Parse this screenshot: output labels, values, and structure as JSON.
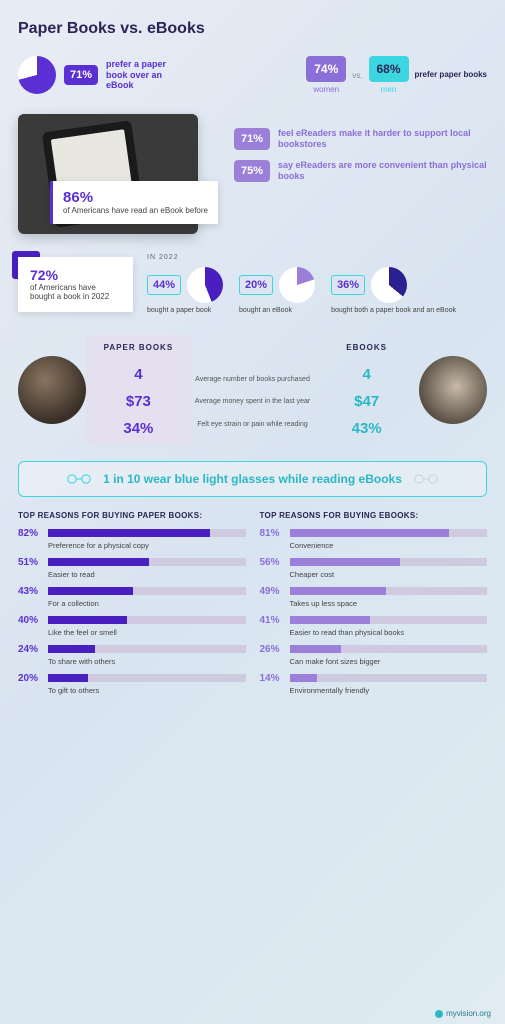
{
  "title": "Paper Books vs. eBooks",
  "top": {
    "prefer_pct": "71%",
    "prefer_text": "prefer a paper book over an eBook",
    "pie": {
      "value": 71,
      "fill": "#5a2fd4",
      "bg": "#ffffff"
    },
    "women": {
      "pct": "74%",
      "label": "women",
      "color": "#8b6fd9"
    },
    "men": {
      "pct": "68%",
      "label": "men",
      "color": "#3cd6e0"
    },
    "vs": "vs.",
    "gender_text": "prefer paper books"
  },
  "ereader": {
    "callout_pct": "86%",
    "callout_text": "of Americans have read an eBook before",
    "stat1_pct": "71%",
    "stat1_text": "feel eReaders make it harder to support local bookstores",
    "stat2_pct": "75%",
    "stat2_text": "say eReaders are more convenient than physical books"
  },
  "y2022": {
    "label": "IN 2022",
    "card_pct": "72%",
    "card_text": "of Americans have bought a book in 2022",
    "pies": [
      {
        "pct": "44%",
        "value": 44,
        "color": "#4a1fc0",
        "label": "bought a paper book"
      },
      {
        "pct": "20%",
        "value": 20,
        "color": "#9b7fd9",
        "label": "bought an eBook"
      },
      {
        "pct": "36%",
        "value": 36,
        "color": "#2a2090",
        "label": "bought both a paper book and an eBook"
      }
    ]
  },
  "compare": {
    "left_head": "PAPER BOOKS",
    "right_head": "EBOOKS",
    "rows": [
      {
        "left": "4",
        "mid": "Average number of books purchased",
        "right": "4"
      },
      {
        "left": "$73",
        "mid": "Average money spent in the last year",
        "right": "$47"
      },
      {
        "left": "34%",
        "mid": "Felt eye strain or pain while reading",
        "right": "43%"
      }
    ]
  },
  "banner": "1 in 10 wear blue light glasses while reading eBooks",
  "reasons": {
    "paper_title": "TOP REASONS FOR BUYING PAPER BOOKS:",
    "ebook_title": "TOP REASONS FOR BUYING EBOOKS:",
    "paper": [
      {
        "pct": "82%",
        "v": 82,
        "label": "Preference for a physical copy"
      },
      {
        "pct": "51%",
        "v": 51,
        "label": "Easier to read"
      },
      {
        "pct": "43%",
        "v": 43,
        "label": "For a collection"
      },
      {
        "pct": "40%",
        "v": 40,
        "label": "Like the feel or smell"
      },
      {
        "pct": "24%",
        "v": 24,
        "label": "To share with others"
      },
      {
        "pct": "20%",
        "v": 20,
        "label": "To gift to others"
      }
    ],
    "ebooks": [
      {
        "pct": "81%",
        "v": 81,
        "label": "Convenience"
      },
      {
        "pct": "56%",
        "v": 56,
        "label": "Cheaper cost"
      },
      {
        "pct": "49%",
        "v": 49,
        "label": "Takes up less space"
      },
      {
        "pct": "41%",
        "v": 41,
        "label": "Easier to read than physical books"
      },
      {
        "pct": "26%",
        "v": 26,
        "label": "Can make font sizes bigger"
      },
      {
        "pct": "14%",
        "v": 14,
        "label": "Environmentally friendly"
      }
    ],
    "paper_color": "#4a1fc0",
    "paper_pct_color": "#5a2fd4",
    "ebook_color": "#9b7fd9",
    "ebook_pct_color": "#8b6fd9"
  },
  "footer": "myvision.org"
}
